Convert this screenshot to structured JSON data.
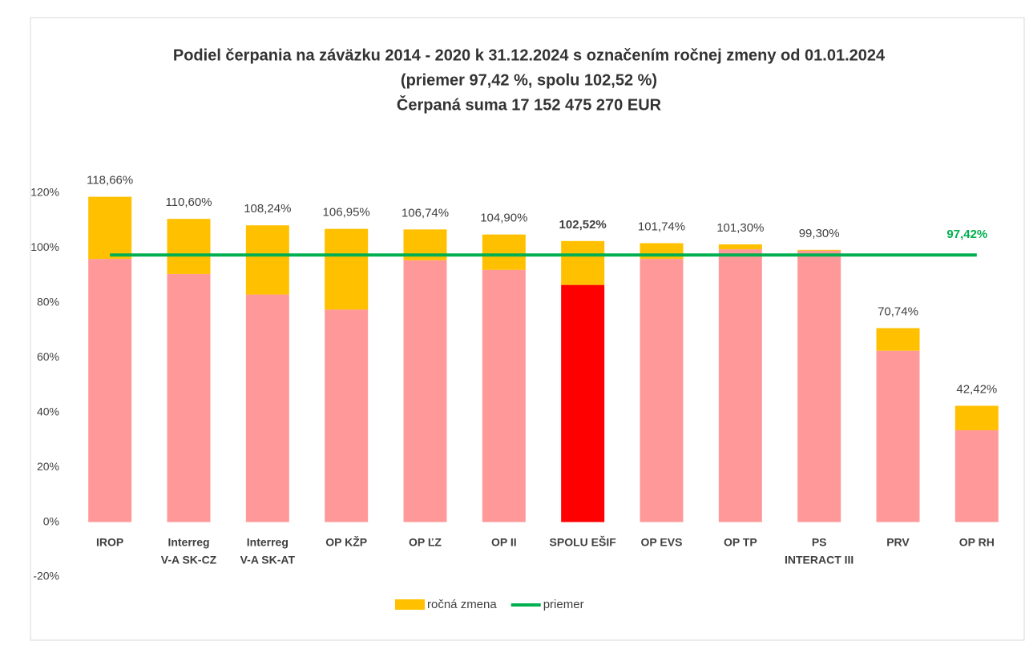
{
  "chart_data": {
    "type": "stacked_bar",
    "title": [
      "Podiel čerpania na záväzku 2014 - 2020 k 31.12.2024 s označením ročnej zmeny od 01.01.2024",
      "(priemer 97,42 %, spolu 102,52 %)",
      "Čerpaná suma 17 152 475 270 EUR"
    ],
    "categories": [
      [
        "IROP"
      ],
      [
        "Interreg",
        "V-A SK-CZ"
      ],
      [
        "Interreg",
        "V-A SK-AT"
      ],
      [
        "OP KŽP"
      ],
      [
        "OP ĽZ"
      ],
      [
        "OP II"
      ],
      [
        "SPOLU EŠIF"
      ],
      [
        "OP EVS"
      ],
      [
        "OP TP"
      ],
      [
        "PS",
        "INTERACT III"
      ],
      [
        "PRV"
      ],
      [
        "OP RH"
      ]
    ],
    "series": [
      {
        "colors": [
          "#ff9999",
          "#ff9999",
          "#ff9999",
          "#ff9999",
          "#ff9999",
          "#ff9999",
          "#ff0000",
          "#ff9999",
          "#ff9999",
          "#ff9999",
          "#ff9999",
          "#ff9999"
        ],
        "values": [
          96,
          90.5,
          83,
          77.5,
          95.5,
          92,
          86.5,
          96,
          99.5,
          99,
          62.5,
          33.5
        ]
      },
      {
        "name": "ročná zmena",
        "color": "#ffc000",
        "values": [
          22.66,
          20.1,
          25.24,
          29.45,
          11.24,
          12.9,
          16.02,
          5.74,
          1.8,
          0.3,
          8.24,
          8.92
        ]
      }
    ],
    "totals": [
      118.66,
      110.6,
      108.24,
      106.95,
      106.74,
      104.9,
      102.52,
      101.74,
      101.3,
      99.3,
      70.74,
      42.42
    ],
    "total_labels": [
      "118,66%",
      "110,60%",
      "108,24%",
      "106,95%",
      "106,74%",
      "104,90%",
      "102,52%",
      "101,74%",
      "101,30%",
      "99,30%",
      "70,74%",
      "42,42%"
    ],
    "line": {
      "name": "priemer",
      "color": "#00b050",
      "value": 97.42,
      "value_label": "97,42%"
    },
    "ylim": [
      -20,
      120
    ],
    "yticks": [
      {
        "value": -20,
        "label": "-20%"
      },
      {
        "value": 0,
        "label": "0%"
      },
      {
        "value": 20,
        "label": "20%"
      },
      {
        "value": 40,
        "label": "40%"
      },
      {
        "value": 60,
        "label": "60%"
      },
      {
        "value": 80,
        "label": "80%"
      },
      {
        "value": 100,
        "label": "100%"
      },
      {
        "value": 120,
        "label": "120%"
      }
    ],
    "grid": false
  }
}
